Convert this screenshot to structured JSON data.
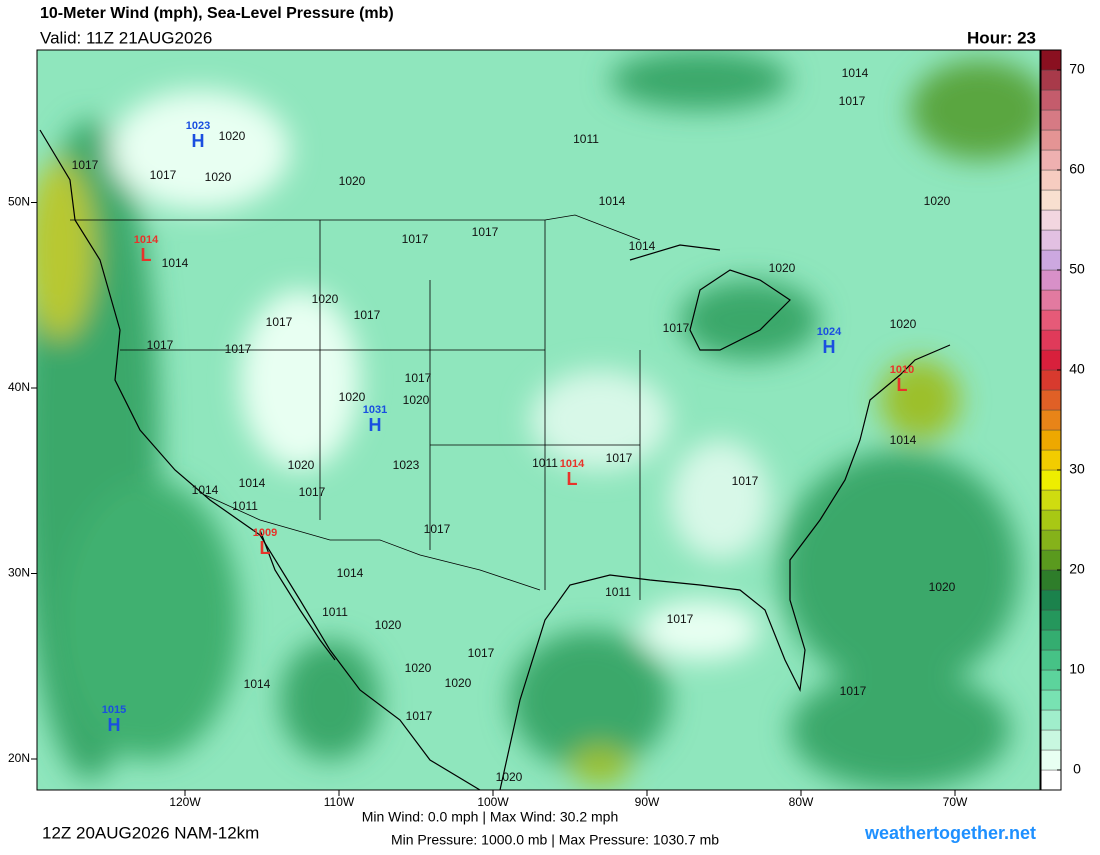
{
  "header": {
    "title": "10-Meter Wind (mph), Sea-Level Pressure (mb)",
    "valid": "Valid: 11Z 21AUG2026",
    "hour": "Hour: 23"
  },
  "map": {
    "lat_ticks": [
      {
        "value": 50,
        "label": "50N"
      },
      {
        "value": 40,
        "label": "40N"
      },
      {
        "value": 30,
        "label": "30N"
      },
      {
        "value": 20,
        "label": "20N"
      }
    ],
    "lon_ticks": [
      {
        "value": -120,
        "label": "120W"
      },
      {
        "value": -110,
        "label": "110W"
      },
      {
        "value": -100,
        "label": "100W"
      },
      {
        "value": -90,
        "label": "90W"
      },
      {
        "value": -80,
        "label": "80W"
      },
      {
        "value": -70,
        "label": "70W"
      }
    ],
    "pressure_centers": [
      {
        "type": "H",
        "value": 1023
      },
      {
        "type": "L",
        "value": 1014
      },
      {
        "type": "H",
        "value": 1031
      },
      {
        "type": "L",
        "value": 1014
      },
      {
        "type": "L",
        "value": 1009
      },
      {
        "type": "H",
        "value": 1024
      },
      {
        "type": "L",
        "value": 1010
      },
      {
        "type": "H",
        "value": 1015
      }
    ],
    "isobar_labels": [
      1014,
      1017,
      1020,
      1017,
      1017,
      1020,
      1020,
      1011,
      1014,
      1020,
      1017,
      1017,
      1014,
      1014,
      1020,
      1020,
      1017,
      1017,
      1017,
      1020,
      1017,
      1017,
      1017,
      1020,
      1020,
      1023,
      1020,
      1014,
      1017,
      1014,
      1011,
      1011,
      1017,
      1017,
      1017,
      1014,
      1014,
      1011,
      1011,
      1020,
      1017,
      1020,
      1020,
      1017,
      1020,
      1014,
      1017,
      1017,
      1020
    ]
  },
  "colorbar": {
    "ylim": [
      -2,
      72
    ],
    "yticks": [
      0,
      10,
      20,
      30,
      40,
      50,
      60,
      70
    ],
    "colors": [
      "#ffffff",
      "#e8fff2",
      "#c8f7e0",
      "#a0eecb",
      "#78e2b2",
      "#5cd49c",
      "#46c286",
      "#34ad70",
      "#25975c",
      "#1b824c",
      "#2e7d2a",
      "#5a9a1e",
      "#85b21a",
      "#a8c814",
      "#cfdc10",
      "#eeee00",
      "#f2cc00",
      "#eea800",
      "#e88418",
      "#e06026",
      "#d83a2e",
      "#d8203c",
      "#e03a5a",
      "#e65a78",
      "#e27aa0",
      "#d890c8",
      "#cca8e0",
      "#e2c0e2",
      "#f2d6e0",
      "#f8e0d0",
      "#f6ccc0",
      "#eeb0b0",
      "#e49494",
      "#d67a84",
      "#c45c6c",
      "#a83a4a",
      "#8a1020"
    ]
  },
  "footer": {
    "run": "12Z 20AUG2026 NAM-12km",
    "wind": "Min Wind:  0.0 mph | Max Wind: 30.2 mph",
    "pressure": "Min Pressure: 1000.0 mb | Max Pressure: 1030.7 mb",
    "site": "weathertogether.net"
  }
}
